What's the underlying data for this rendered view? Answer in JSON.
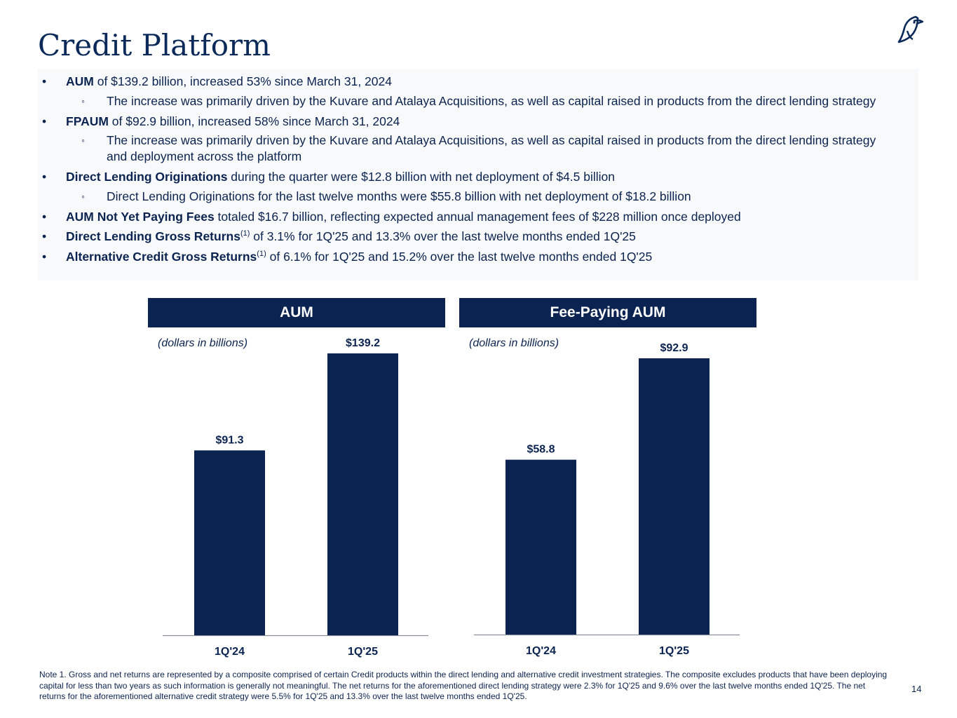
{
  "title": "Credit Platform",
  "bullets": [
    {
      "level": 1,
      "bold": "AUM",
      "sup": "",
      "text": " of $139.2 billion, increased 53% since March 31, 2024"
    },
    {
      "level": 2,
      "bold": "",
      "sup": "",
      "text": "The increase was primarily driven by the Kuvare and Atalaya Acquisitions, as well as capital raised in products from the direct lending strategy"
    },
    {
      "level": 1,
      "bold": "FPAUM",
      "sup": "",
      "text": " of $92.9 billion, increased 58% since March 31, 2024"
    },
    {
      "level": 2,
      "bold": "",
      "sup": "",
      "text": "The increase was primarily driven by the Kuvare and Atalaya Acquisitions, as well as capital raised in products from the direct lending strategy and deployment across the platform"
    },
    {
      "level": 1,
      "bold": "Direct Lending Originations",
      "sup": "",
      "text": " during the quarter were $12.8 billion with net deployment of $4.5 billion"
    },
    {
      "level": 2,
      "bold": "",
      "sup": "",
      "text": "Direct Lending Originations for the last twelve months were $55.8 billion with net deployment of $18.2 billion"
    },
    {
      "level": 1,
      "bold": "AUM Not Yet Paying Fees",
      "sup": "",
      "text": " totaled $16.7 billion, reflecting expected annual management fees of $228 million once deployed"
    },
    {
      "level": 1,
      "bold": "Direct Lending Gross Returns",
      "sup": "(1)",
      "text": " of 3.1% for 1Q'25 and 13.3% over the last twelve months ended 1Q'25"
    },
    {
      "level": 1,
      "bold": "Alternative Credit Gross Returns",
      "sup": "(1)",
      "text": " of 6.1% for 1Q'25 and 15.2% over the last twelve months ended 1Q'25"
    }
  ],
  "bullet_mark": "•",
  "sub_mark": "◦",
  "colors": {
    "navy": "#0b2350",
    "panel": "#f8f9fa"
  },
  "chart_data": [
    {
      "type": "bar",
      "title": "AUM",
      "subtitle": "(dollars in billions)",
      "categories": [
        "1Q'24",
        "1Q'25"
      ],
      "values": [
        91.3,
        139.2
      ],
      "labels": [
        "$91.3",
        "$139.2"
      ],
      "ylim": [
        0,
        139.2
      ],
      "xlabel": "",
      "ylabel": ""
    },
    {
      "type": "bar",
      "title": "Fee-Paying AUM",
      "subtitle": "(dollars in billions)",
      "categories": [
        "1Q'24",
        "1Q'25"
      ],
      "values": [
        58.8,
        92.9
      ],
      "labels": [
        "$58.8",
        "$92.9"
      ],
      "ylim": [
        0,
        92.9
      ],
      "xlabel": "",
      "ylabel": ""
    }
  ],
  "note": "Note 1. Gross and net returns are represented by a composite comprised of certain Credit products within the direct lending and alternative credit investment strategies. The composite excludes products that have been deploying capital for less than two years as such information is generally not meaningful. The net returns for the aforementioned direct lending strategy were 2.3% for 1Q'25 and 9.6% over the last twelve months ended 1Q'25. The net returns for the aforementioned alternative credit strategy were 5.5% for 1Q'25 and 13.3% over the last twelve months ended 1Q'25.",
  "page_number": "14",
  "logo_icon": "bird-logo-icon"
}
